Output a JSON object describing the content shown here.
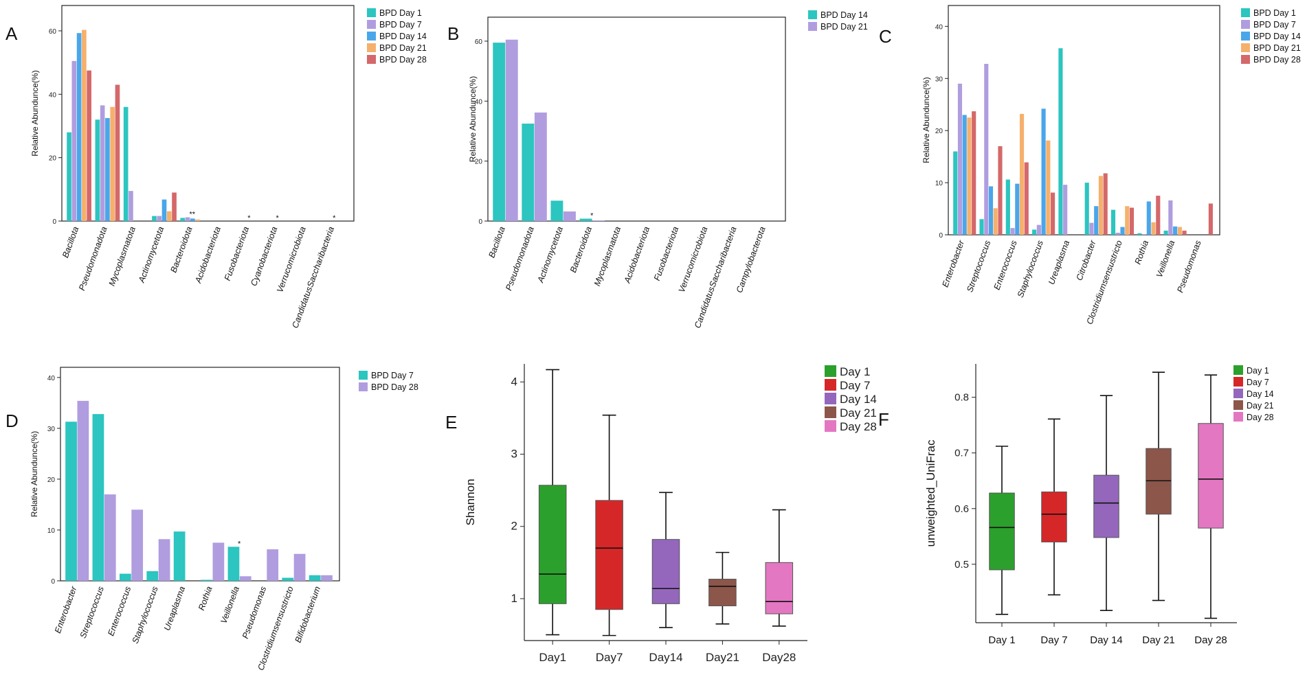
{
  "panel_labels": [
    "A",
    "B",
    "C",
    "D",
    "E",
    "F"
  ],
  "colors": {
    "bpd": [
      "#2cc5c0",
      "#b09ddf",
      "#4aa6ea",
      "#f6b06d",
      "#d4686a"
    ],
    "day": [
      "#2ca02c",
      "#d62728",
      "#9467bd",
      "#8c564b",
      "#e377c2"
    ]
  },
  "chart_data": [
    {
      "id": "A",
      "type": "bar",
      "ylabel": "Relative Abundunce(%)",
      "ylim": [
        0,
        68
      ],
      "yticks": [
        0,
        20,
        40,
        60
      ],
      "categories": [
        "Bacillota",
        "Pseudomonadota",
        "Mycoplasmatota",
        "Actinomycetota",
        "Bacteroidota",
        "Acidobacteriota",
        "Fusobacteriota",
        "Cyanobacteriota",
        "Verrucomicrobiota",
        "CandidatusSaccharibacteria"
      ],
      "series": [
        {
          "name": "BPD Day 1",
          "values": [
            28,
            32,
            36,
            1.6,
            1.0,
            0,
            0,
            0,
            0,
            0
          ]
        },
        {
          "name": "BPD Day 7",
          "values": [
            50.5,
            36.5,
            9.5,
            1.6,
            1.2,
            0,
            0,
            0,
            0,
            0
          ]
        },
        {
          "name": "BPD Day 14",
          "values": [
            59.3,
            32.5,
            0,
            6.8,
            0.8,
            0,
            0,
            0,
            0,
            0
          ]
        },
        {
          "name": "BPD Day 21",
          "values": [
            60.3,
            36,
            0,
            3.1,
            0.5,
            0,
            0,
            0,
            0,
            0
          ]
        },
        {
          "name": "BPD Day 28",
          "values": [
            47.5,
            43,
            0,
            9,
            0,
            0,
            0,
            0,
            0,
            0
          ]
        }
      ],
      "annotations": [
        {
          "category_index": 4,
          "text": "**"
        },
        {
          "category_index": 6,
          "text": "*"
        },
        {
          "category_index": 7,
          "text": "*"
        },
        {
          "category_index": 9,
          "text": "*"
        }
      ]
    },
    {
      "id": "B",
      "type": "bar",
      "ylabel": "Relative Abundunce(%)",
      "ylim": [
        0,
        68
      ],
      "yticks": [
        0,
        20,
        40,
        60
      ],
      "categories": [
        "Bacillota",
        "Pseudomonadota",
        "Actinomycetota",
        "Bacteroidota",
        "Mycoplasmatota",
        "Acidobacteriota",
        "Fusobacteriota",
        "Verrucomicrobiota",
        "CandidatusSaccharibacteria",
        "Campylobacterota"
      ],
      "series": [
        {
          "name": "BPD Day 14",
          "values": [
            59.5,
            32.5,
            6.8,
            0.8,
            0,
            0,
            0,
            0,
            0,
            0
          ]
        },
        {
          "name": "BPD Day 21",
          "values": [
            60.5,
            36.2,
            3.2,
            0.2,
            0,
            0,
            0,
            0,
            0,
            0
          ]
        }
      ],
      "annotations": [
        {
          "category_index": 3,
          "text": "*"
        }
      ]
    },
    {
      "id": "C",
      "type": "bar",
      "ylabel": "Relative Abundunce(%)",
      "ylim": [
        0,
        44
      ],
      "yticks": [
        0,
        10,
        20,
        30,
        40
      ],
      "categories": [
        "Enterobacter",
        "Streptococcus",
        "Enterococcus",
        "Staphylococcus",
        "Ureaplasma",
        "Citrobacter",
        "Clostridiumsensustricto",
        "Rothia",
        "Veillonella",
        "Pseudomonas"
      ],
      "series": [
        {
          "name": "BPD Day 1",
          "values": [
            16,
            3,
            10.6,
            1,
            35.8,
            10,
            4.8,
            0.3,
            0.8,
            0
          ]
        },
        {
          "name": "BPD Day 7",
          "values": [
            29,
            32.8,
            1.3,
            1.9,
            9.6,
            2.3,
            0.4,
            0.1,
            6.6,
            0
          ]
        },
        {
          "name": "BPD Day 14",
          "values": [
            23,
            9.3,
            9.8,
            24.2,
            0,
            5.5,
            1.5,
            6.4,
            1.6,
            0
          ]
        },
        {
          "name": "BPD Day 21",
          "values": [
            22.5,
            5.1,
            23.2,
            18.1,
            0,
            11.3,
            5.5,
            2.4,
            1.5,
            0
          ]
        },
        {
          "name": "BPD Day 28",
          "values": [
            23.7,
            17,
            13.9,
            8.1,
            0,
            11.8,
            5.2,
            7.5,
            0.8,
            6
          ]
        }
      ]
    },
    {
      "id": "D",
      "type": "bar",
      "ylabel": "Relative Abundunce(%)",
      "ylim": [
        0,
        42
      ],
      "yticks": [
        0,
        10,
        20,
        30,
        40
      ],
      "categories": [
        "Enterobacter",
        "Streptococcus",
        "Enterococcus",
        "Staphylococcus",
        "Ureaplasma",
        "Rothia",
        "Veillonella",
        "Pseudomonas",
        "Clostridiumsensustricto",
        "Bifidobacterium"
      ],
      "series": [
        {
          "name": "BPD Day 7",
          "values": [
            31.3,
            32.8,
            1.4,
            1.9,
            9.7,
            0.2,
            6.7,
            0,
            0.6,
            1.1
          ]
        },
        {
          "name": "BPD Day 28",
          "values": [
            35.4,
            17,
            14,
            8.2,
            0,
            7.5,
            0.9,
            6.2,
            5.3,
            1.1
          ]
        }
      ],
      "annotations": [
        {
          "category_index": 6,
          "text": "*"
        }
      ]
    },
    {
      "id": "E",
      "type": "box",
      "ylabel": "Shannon",
      "ylim": [
        0.42,
        4.25
      ],
      "yticks": [
        1,
        2,
        3,
        4
      ],
      "categories": [
        "Day1",
        "Day7",
        "Day14",
        "Day21",
        "Day28"
      ],
      "legend": [
        "Day 1",
        "Day 7",
        "Day 14",
        "Day 21",
        "Day 28"
      ],
      "boxes": [
        {
          "min": 0.5,
          "q1": 0.93,
          "median": 1.34,
          "q3": 2.57,
          "max": 4.17
        },
        {
          "min": 0.49,
          "q1": 0.85,
          "median": 1.7,
          "q3": 2.36,
          "max": 3.54
        },
        {
          "min": 0.6,
          "q1": 0.93,
          "median": 1.14,
          "q3": 1.82,
          "max": 2.47
        },
        {
          "min": 0.65,
          "q1": 0.9,
          "median": 1.17,
          "q3": 1.27,
          "max": 1.64
        },
        {
          "min": 0.62,
          "q1": 0.79,
          "median": 0.96,
          "q3": 1.5,
          "max": 2.23
        }
      ]
    },
    {
      "id": "F",
      "type": "box",
      "ylabel": "unweighted_UniFrac",
      "ylim": [
        0.395,
        0.86
      ],
      "yticks": [
        0.5,
        0.6,
        0.7,
        0.8
      ],
      "categories": [
        "Day 1",
        "Day 7",
        "Day 14",
        "Day 21",
        "Day 28"
      ],
      "legend": [
        "Day 1",
        "Day 7",
        "Day 14",
        "Day 21",
        "Day 28"
      ],
      "boxes": [
        {
          "min": 0.41,
          "q1": 0.49,
          "median": 0.566,
          "q3": 0.628,
          "max": 0.712
        },
        {
          "min": 0.445,
          "q1": 0.54,
          "median": 0.59,
          "q3": 0.63,
          "max": 0.761
        },
        {
          "min": 0.417,
          "q1": 0.548,
          "median": 0.61,
          "q3": 0.66,
          "max": 0.803
        },
        {
          "min": 0.435,
          "q1": 0.59,
          "median": 0.65,
          "q3": 0.708,
          "max": 0.845
        },
        {
          "min": 0.403,
          "q1": 0.565,
          "median": 0.653,
          "q3": 0.753,
          "max": 0.84
        }
      ]
    }
  ]
}
